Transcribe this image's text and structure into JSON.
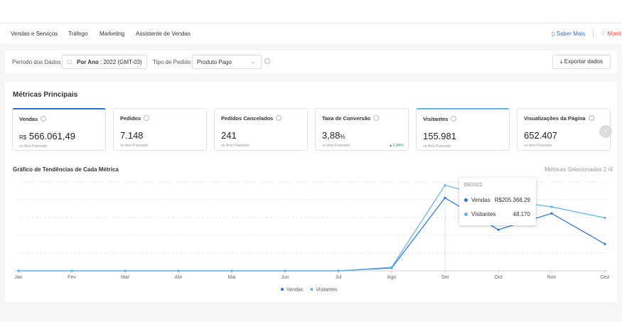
{
  "nav": {
    "tabs": [
      "Vendas e Serviços",
      "Tráfego",
      "Marketing",
      "Assistente de Vendas"
    ],
    "links": [
      "Saber Mais",
      "Monit"
    ]
  },
  "filters": {
    "period_label": "Período dos Dados",
    "period_value": "Por Ano",
    "period_year": ": 2022 (GMT-03)",
    "order_label": "Tipo de Pedido",
    "order_value": "Produto Pago",
    "export": "Exportar dados"
  },
  "metrics": {
    "title": "Métricas Principais",
    "cards": [
      {
        "name": "Vendas",
        "prefix": "R$",
        "value": "566.061,49",
        "compare": "vs Ano Passado",
        "change": "-",
        "selected": true,
        "color": "#2673dd"
      },
      {
        "name": "Pedidos",
        "value": "7.148",
        "compare": "vs Ano Passado",
        "change": "-"
      },
      {
        "name": "Pedidos Cancelados",
        "value": "241",
        "compare": "vs Ano Passado",
        "change": "-"
      },
      {
        "name": "Taxa de Conversão",
        "value": "3,88",
        "suffix": "%",
        "compare": "vs Ano Passado",
        "change": "▲3,88%",
        "up": true
      },
      {
        "name": "Visitantes",
        "value": "155.981",
        "compare": "vs Ano Passado",
        "change": "-",
        "selected": true,
        "color": "#5bb5ef"
      },
      {
        "name": "Visualizações da Página",
        "value": "652.407",
        "compare": "vs Ano Passado",
        "change": "-"
      }
    ]
  },
  "trend": {
    "title": "Gráfico de Tendências de Cada Métrica",
    "selected": "Métricas Selecionadas 2 /4"
  },
  "chart_data": {
    "type": "line",
    "categories": [
      "Jan",
      "Fev",
      "Mar",
      "Abr",
      "Mai",
      "Jun",
      "Jul",
      "Ago",
      "Set",
      "Out",
      "Nov",
      "Dez"
    ],
    "series": [
      {
        "name": "Vendas",
        "color": "#2673dd",
        "values": [
          0,
          0,
          0,
          0,
          0,
          0,
          0,
          8000,
          205368.29,
          115600,
          161500,
          75600
        ]
      },
      {
        "name": "Visitantes",
        "color": "#5bb5ef",
        "axis": "y2",
        "values": [
          0,
          0,
          0,
          0,
          0,
          0,
          0,
          2000,
          48170,
          40000,
          36000,
          29800
        ]
      }
    ],
    "ylim": [
      0,
      250000
    ],
    "y2lim": [
      0,
      50000
    ],
    "grid": true,
    "tooltip": {
      "title": "09/2022",
      "items": [
        {
          "name": "Vendas",
          "value": "R$205.368,29"
        },
        {
          "name": "Visitantes",
          "value": "48.170"
        }
      ]
    }
  }
}
